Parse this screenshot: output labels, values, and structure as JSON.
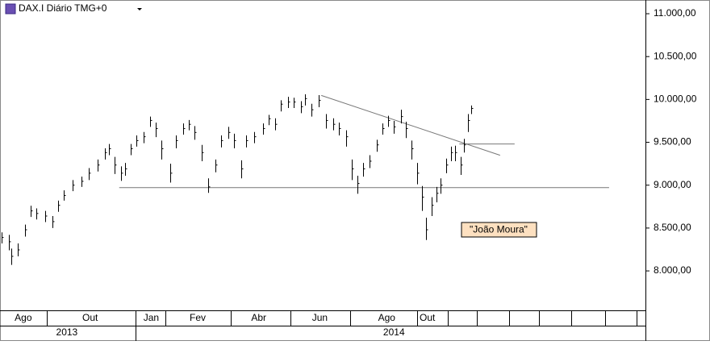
{
  "chart_data": {
    "type": "ohlc",
    "title": "DAX.I Diário TMG+0",
    "annotation": "\"João Moura\"",
    "color": "#000000",
    "xlim": [
      0,
      444
    ],
    "ylim": [
      7540,
      11160
    ],
    "yticks": [
      {
        "value": 8000,
        "label": "8.000,00"
      },
      {
        "value": 8500,
        "label": "8.500,00"
      },
      {
        "value": 9000,
        "label": "9.000,00"
      },
      {
        "value": 9500,
        "label": "9.500,00"
      },
      {
        "value": 10000,
        "label": "10.000,00"
      },
      {
        "value": 10500,
        "label": "10.500,00"
      },
      {
        "value": 11000,
        "label": "11.000,00"
      }
    ],
    "xticks": [
      {
        "value": 16,
        "label": "Ago"
      },
      {
        "value": 62,
        "label": "Out"
      },
      {
        "value": 104,
        "label": "Jan"
      },
      {
        "value": 136,
        "label": "Fev"
      },
      {
        "value": 178,
        "label": "Abr"
      },
      {
        "value": 220,
        "label": "Jun"
      },
      {
        "value": 266,
        "label": "Ago"
      },
      {
        "value": 294,
        "label": "Out"
      }
    ],
    "month_separators": [
      32,
      93,
      114,
      159,
      200,
      241,
      287,
      308,
      328,
      350,
      371,
      393,
      416,
      438
    ],
    "year_labels": [
      {
        "value": 46,
        "label": "2013"
      },
      {
        "value": 271,
        "label": "2014"
      }
    ],
    "year_separators": [
      93
    ],
    "x": [
      1,
      6,
      8,
      12,
      17,
      21,
      25,
      31,
      36,
      40,
      44,
      50,
      56,
      61,
      67,
      72,
      75,
      79,
      83,
      86,
      90,
      94,
      99,
      103,
      107,
      111,
      117,
      121,
      126,
      130,
      134,
      139,
      143,
      148,
      152,
      157,
      161,
      166,
      169,
      175,
      181,
      185,
      189,
      193,
      198,
      202,
      207,
      210,
      214,
      219,
      224,
      229,
      233,
      238,
      242,
      246,
      250,
      254,
      259,
      263,
      267,
      271,
      276,
      279,
      283,
      287,
      290,
      293,
      297,
      300,
      303,
      307,
      310,
      313,
      317,
      319,
      322,
      324
    ],
    "high": [
      8450,
      8420,
      8260,
      8320,
      8540,
      8760,
      8730,
      8700,
      8640,
      8820,
      8940,
      9060,
      9100,
      9200,
      9300,
      9430,
      9480,
      9330,
      9220,
      9260,
      9480,
      9580,
      9620,
      9800,
      9730,
      9520,
      9250,
      9580,
      9720,
      9760,
      9690,
      9470,
      9080,
      9300,
      9580,
      9680,
      9600,
      9290,
      9580,
      9620,
      9720,
      9820,
      9780,
      9990,
      10030,
      10020,
      9980,
      10060,
      9950,
      10050,
      9830,
      9780,
      9730,
      9640,
      9300,
      9110,
      9260,
      9350,
      9530,
      9720,
      9810,
      9750,
      9880,
      9740,
      9520,
      9260,
      8990,
      8620,
      8860,
      8980,
      9080,
      9310,
      9450,
      9460,
      9330,
      9540,
      9830,
      9930
    ],
    "low": [
      8320,
      8240,
      8070,
      8170,
      8400,
      8630,
      8600,
      8570,
      8500,
      8690,
      8820,
      8930,
      8980,
      9060,
      9160,
      9300,
      9350,
      9130,
      9050,
      9110,
      9350,
      9450,
      9490,
      9680,
      9560,
      9300,
      9030,
      9430,
      9590,
      9640,
      9530,
      9280,
      8910,
      9150,
      9440,
      9540,
      9430,
      9080,
      9440,
      9490,
      9590,
      9700,
      9640,
      9860,
      9900,
      9900,
      9840,
      9930,
      9800,
      9910,
      9660,
      9640,
      9580,
      9450,
      9060,
      8900,
      9100,
      9200,
      9390,
      9590,
      9680,
      9600,
      9720,
      9550,
      9300,
      9010,
      8700,
      8360,
      8640,
      8800,
      8900,
      9140,
      9280,
      9280,
      9120,
      9380,
      9620,
      9830
    ],
    "close": [
      8390,
      8340,
      8170,
      8245,
      8480,
      8700,
      8670,
      8640,
      8575,
      8765,
      8880,
      9000,
      9045,
      9140,
      9235,
      9380,
      9425,
      9235,
      9140,
      9190,
      9425,
      9520,
      9565,
      9755,
      9660,
      9425,
      9140,
      9520,
      9660,
      9710,
      9615,
      9380,
      8980,
      9235,
      9520,
      9615,
      9520,
      9190,
      9520,
      9565,
      9660,
      9775,
      9710,
      9945,
      9970,
      9970,
      9915,
      10010,
      9880,
      9990,
      9755,
      9710,
      9660,
      9565,
      9190,
      9020,
      9190,
      9280,
      9470,
      9660,
      9755,
      9680,
      9800,
      9660,
      9425,
      9140,
      8860,
      8480,
      8765,
      8905,
      9000,
      9235,
      9380,
      9380,
      9235,
      9470,
      9755,
      9895
    ],
    "trendlines": [
      {
        "x": [
          82,
          419
        ],
        "y": [
          8972,
          8972
        ]
      },
      {
        "x": [
          316,
          354
        ],
        "y": [
          9481,
          9481
        ]
      },
      {
        "x": [
          221,
          344
        ],
        "y": [
          10047,
          9349
        ]
      }
    ]
  }
}
